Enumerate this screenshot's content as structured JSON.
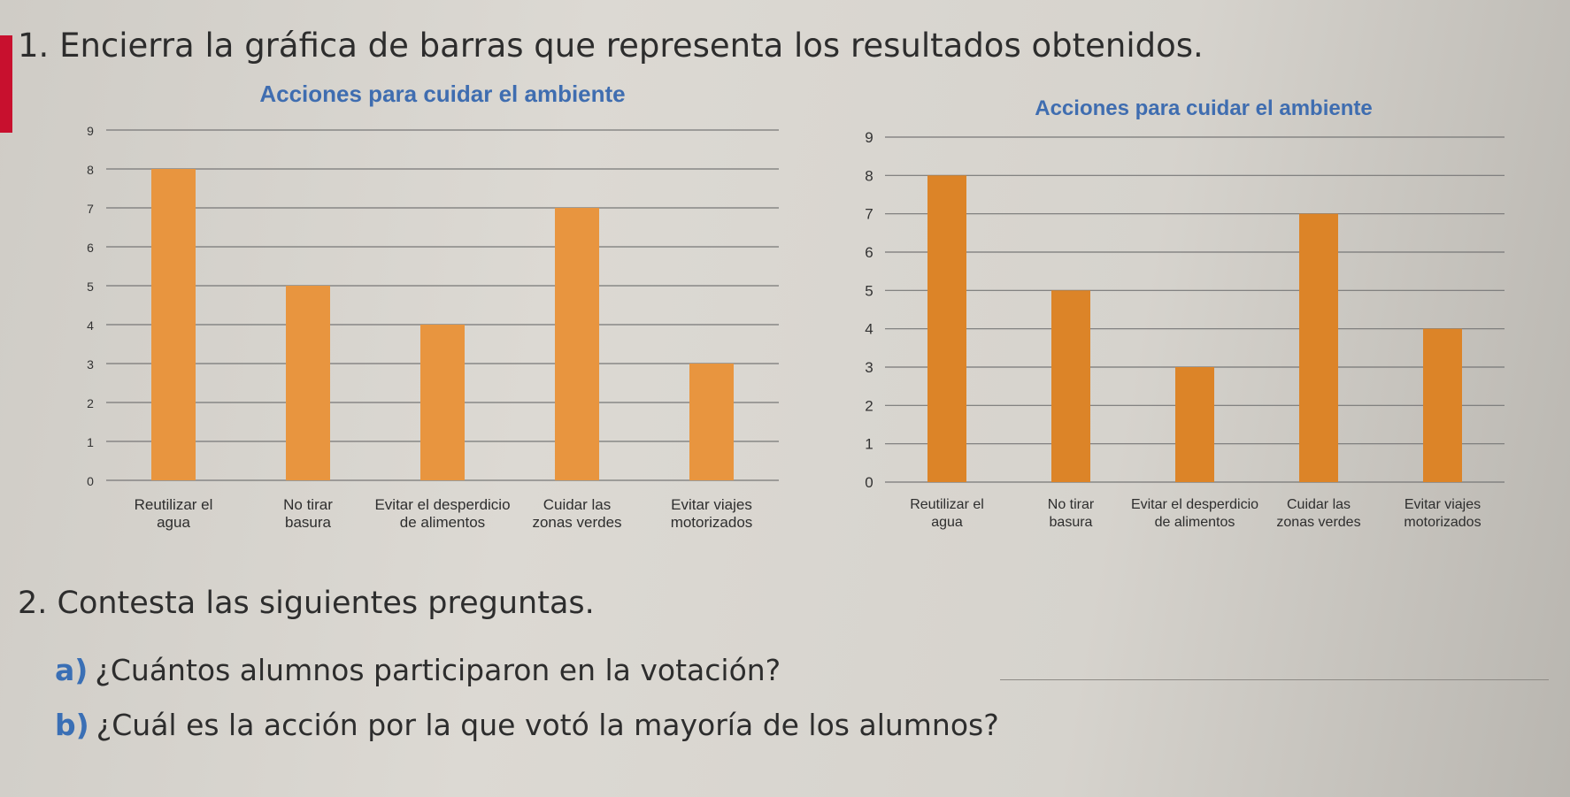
{
  "exercise1": {
    "text": "1. Encierra la gráfica de barras que representa los resultados obtenidos."
  },
  "exercise2": {
    "text": "2. Contesta las siguientes preguntas."
  },
  "questions": [
    {
      "letter": "a)",
      "text": "¿Cuántos alumnos participaron en la votación?"
    },
    {
      "letter": "b)",
      "text": "¿Cuál es la acción por la que votó la mayoría de los alumnos?"
    }
  ],
  "colors": {
    "bar_left": "#e8953f",
    "bar_right": "#dc8428",
    "title": "#3f6db0",
    "grid": "#777777"
  },
  "chart_data": [
    {
      "type": "bar",
      "title": "Acciones para cuidar el ambiente",
      "xlabel": "",
      "ylabel": "",
      "ylim": [
        0,
        9
      ],
      "ticks": [
        "0",
        "1",
        "2",
        "3",
        "4",
        "5",
        "6",
        "7",
        "8",
        "9"
      ],
      "categories": [
        [
          "Reutilizar el",
          "agua"
        ],
        [
          "No tirar",
          "basura"
        ],
        [
          "Evitar el desperdicio",
          "de alimentos"
        ],
        [
          "Cuidar las",
          "zonas verdes"
        ],
        [
          "Evitar viajes",
          "motorizados"
        ]
      ],
      "values": [
        8,
        5,
        4,
        7,
        3
      ],
      "grid": true
    },
    {
      "type": "bar",
      "title": "Acciones para cuidar el ambiente",
      "xlabel": "",
      "ylabel": "",
      "ylim": [
        0,
        9
      ],
      "ticks": [
        "0",
        "1",
        "2",
        "3",
        "4",
        "5",
        "6",
        "7",
        "8",
        "9"
      ],
      "categories": [
        [
          "Reutilizar el",
          "agua"
        ],
        [
          "No tirar",
          "basura"
        ],
        [
          "Evitar el desperdicio",
          "de alimentos"
        ],
        [
          "Cuidar las",
          "zonas verdes"
        ],
        [
          "Evitar viajes",
          "motorizados"
        ]
      ],
      "values": [
        8,
        5,
        3,
        7,
        4
      ],
      "grid": true
    }
  ]
}
